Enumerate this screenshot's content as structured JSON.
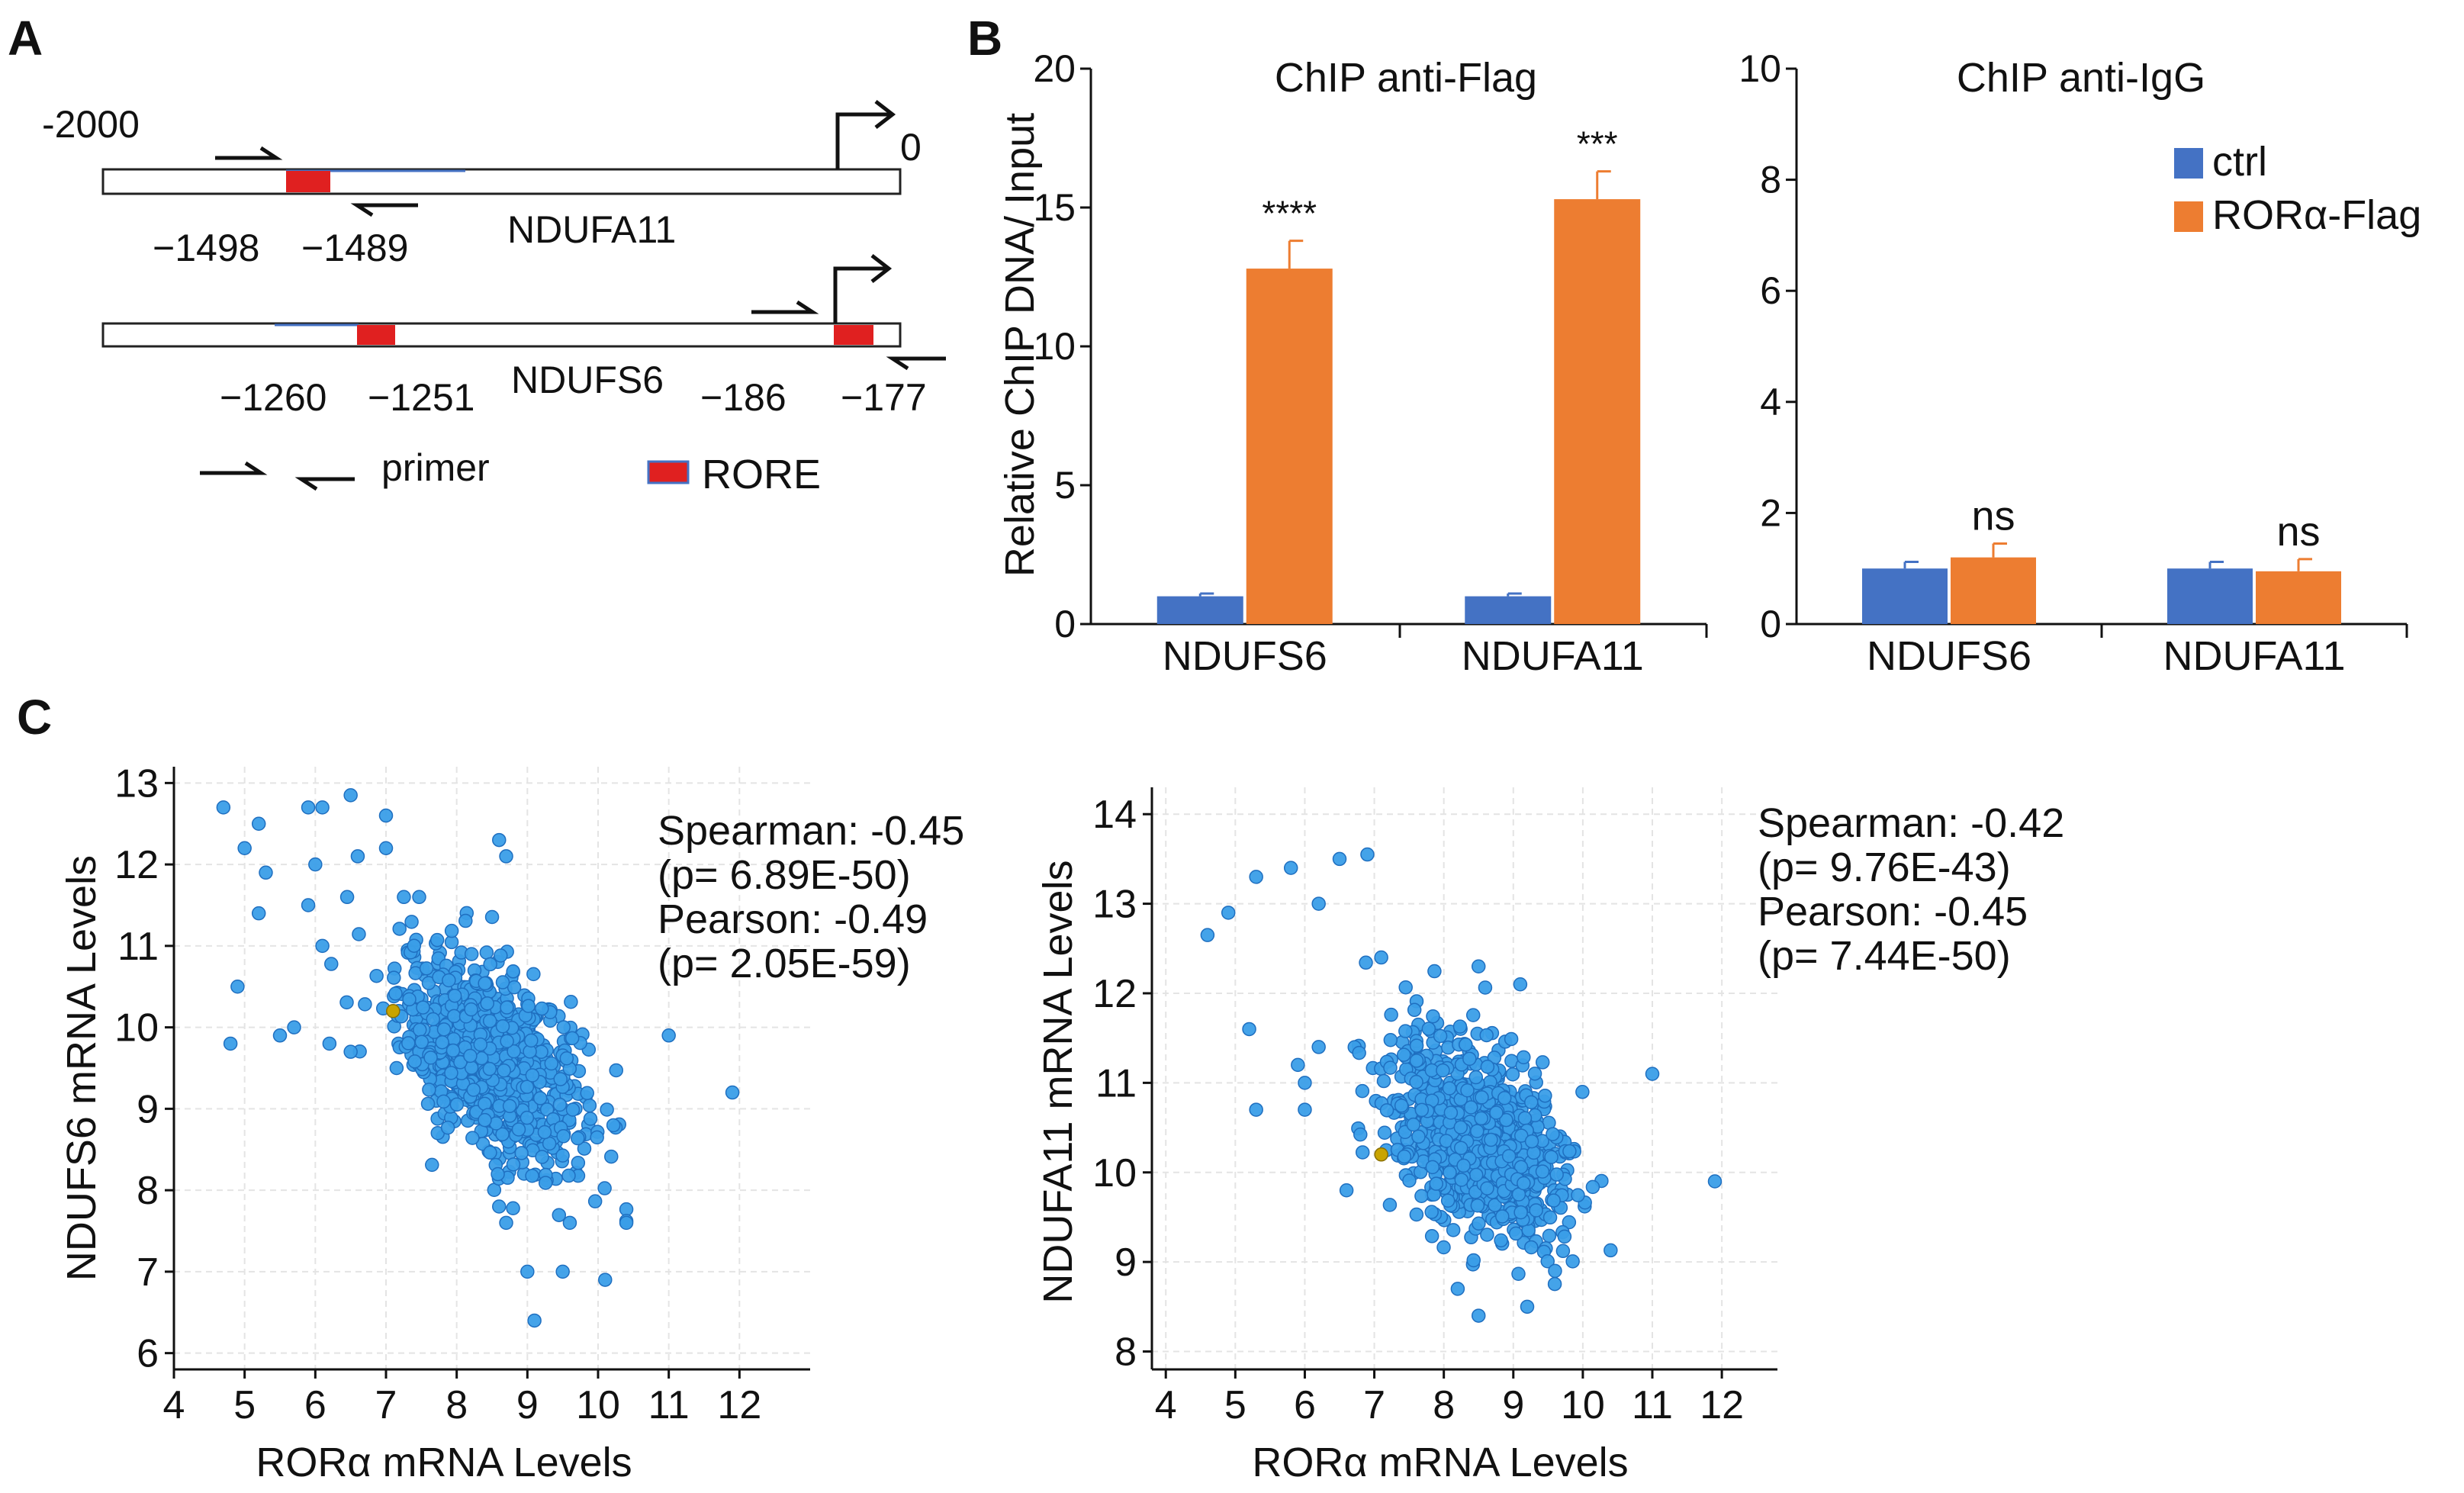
{
  "panel_labels": {
    "a": "A",
    "b": "B",
    "c": "C"
  },
  "colors": {
    "ctrl": "#4472c4",
    "ror": "#ed7d31",
    "rore": "#e02020",
    "point": "#3a9ee8",
    "point_edge": "#1f6fc0",
    "highlight": "#c9a400",
    "grid": "#e4e4e4"
  },
  "promoter": {
    "ndufa11": {
      "name": "NDUFA11",
      "start_label": "-2000",
      "end_label": "0",
      "rore_labels": [
        "−1498",
        "−1489"
      ]
    },
    "ndufs6": {
      "name": "NDUFS6",
      "rore1_labels": [
        "−1260",
        "−1251"
      ],
      "rore2_labels": [
        "−186",
        "−177"
      ]
    },
    "legend": {
      "primer": "primer",
      "rore": "RORE"
    }
  },
  "chart_data": [
    {
      "id": "chip_flag",
      "type": "bar",
      "title": "ChIP anti-Flag",
      "ylabel": "Relative ChIP DNA/ Input",
      "xlabel": "",
      "ylim": [
        0,
        20
      ],
      "yticks": [
        "0",
        "5",
        "10",
        "15",
        "20"
      ],
      "categories": [
        "NDUFS6",
        "NDUFA11"
      ],
      "series": [
        {
          "name": "ctrl",
          "values": [
            1.0,
            1.0
          ],
          "errors": [
            0.1,
            0.1
          ]
        },
        {
          "name": "RORα-Flag",
          "values": [
            12.8,
            15.3
          ],
          "errors": [
            1.0,
            1.0
          ]
        }
      ],
      "annotations": [
        "****",
        "***"
      ]
    },
    {
      "id": "chip_igg",
      "type": "bar",
      "title": "ChIP anti-IgG",
      "ylabel": "",
      "xlabel": "",
      "ylim": [
        0,
        10
      ],
      "yticks": [
        "0",
        "2",
        "4",
        "6",
        "8",
        "10"
      ],
      "categories": [
        "NDUFS6",
        "NDUFA11"
      ],
      "series": [
        {
          "name": "ctrl",
          "values": [
            1.0,
            1.0
          ],
          "errors": [
            0.12,
            0.12
          ]
        },
        {
          "name": "RORα-Flag",
          "values": [
            1.2,
            0.95
          ],
          "errors": [
            0.25,
            0.22
          ]
        }
      ],
      "annotations": [
        "ns",
        "ns"
      ],
      "legend": [
        "ctrl",
        "RORα-Flag"
      ]
    },
    {
      "id": "scatter_ndufs6",
      "type": "scatter",
      "xlabel": "RORα mRNA Levels",
      "ylabel": "NDUFS6 mRNA Levels",
      "xlim": [
        4,
        13
      ],
      "ylim": [
        5.8,
        13.2
      ],
      "xticks": [
        "4",
        "5",
        "6",
        "7",
        "8",
        "9",
        "10",
        "11",
        "12"
      ],
      "yticks": [
        "6",
        "7",
        "8",
        "9",
        "10",
        "11",
        "12",
        "13"
      ],
      "stats": [
        "Spearman: -0.45",
        "(p= 6.89E-50)",
        "Pearson: -0.49",
        "(p= 2.05E-59)"
      ],
      "cluster": {
        "n": 900,
        "x_mean": 8.5,
        "x_sd": 0.65,
        "y_mean": 9.6,
        "y_sd": 0.62,
        "r": -0.45
      },
      "highlight_point": [
        7.1,
        10.2
      ],
      "points": [
        [
          4.7,
          12.7
        ],
        [
          5.2,
          12.5
        ],
        [
          5.0,
          12.2
        ],
        [
          6.1,
          12.7
        ],
        [
          6.5,
          12.85
        ],
        [
          5.9,
          12.7
        ],
        [
          5.3,
          11.9
        ],
        [
          5.2,
          11.4
        ],
        [
          6.0,
          12.0
        ],
        [
          5.9,
          11.5
        ],
        [
          7.0,
          12.6
        ],
        [
          7.0,
          12.2
        ],
        [
          6.6,
          12.1
        ],
        [
          4.9,
          10.5
        ],
        [
          4.8,
          9.8
        ],
        [
          5.5,
          9.9
        ],
        [
          6.2,
          9.8
        ],
        [
          6.5,
          9.7
        ],
        [
          11.0,
          9.9
        ],
        [
          11.9,
          9.2
        ],
        [
          9.1,
          6.4
        ],
        [
          9.0,
          7.0
        ],
        [
          9.5,
          7.0
        ],
        [
          10.1,
          6.9
        ],
        [
          10.4,
          7.6
        ],
        [
          9.6,
          7.6
        ],
        [
          8.7,
          7.6
        ],
        [
          8.6,
          7.8
        ],
        [
          5.7,
          10.0
        ],
        [
          6.1,
          11.0
        ],
        [
          8.6,
          12.3
        ],
        [
          8.7,
          12.1
        ]
      ]
    },
    {
      "id": "scatter_ndufa11",
      "type": "scatter",
      "xlabel": "RORα mRNA Levels",
      "ylabel": "NDUFA11 mRNA Levels",
      "xlim": [
        3.8,
        12.8
      ],
      "ylim": [
        7.8,
        14.3
      ],
      "xticks": [
        "4",
        "5",
        "6",
        "7",
        "8",
        "9",
        "10",
        "11",
        "12"
      ],
      "yticks": [
        "8",
        "9",
        "10",
        "11",
        "12",
        "13",
        "14"
      ],
      "stats": [
        "Spearman: -0.42",
        "(p= 9.76E-43)",
        "Pearson: -0.45",
        "(p= 7.44E-50)"
      ],
      "cluster": {
        "n": 900,
        "x_mean": 8.5,
        "x_sd": 0.65,
        "y_mean": 10.4,
        "y_sd": 0.55,
        "r": -0.42
      },
      "highlight_point": [
        7.1,
        10.2
      ],
      "points": [
        [
          4.6,
          12.65
        ],
        [
          4.9,
          12.9
        ],
        [
          5.3,
          13.3
        ],
        [
          5.8,
          13.4
        ],
        [
          6.5,
          13.5
        ],
        [
          6.9,
          13.55
        ],
        [
          6.2,
          13.0
        ],
        [
          5.2,
          11.6
        ],
        [
          5.3,
          10.7
        ],
        [
          6.2,
          11.4
        ],
        [
          5.9,
          11.2
        ],
        [
          11.0,
          11.1
        ],
        [
          11.9,
          9.9
        ],
        [
          8.5,
          8.4
        ],
        [
          8.2,
          8.7
        ],
        [
          9.2,
          8.5
        ],
        [
          9.6,
          8.9
        ],
        [
          6.0,
          10.7
        ],
        [
          6.6,
          9.8
        ],
        [
          6.0,
          11.0
        ],
        [
          8.5,
          12.3
        ],
        [
          9.1,
          12.1
        ]
      ]
    }
  ]
}
